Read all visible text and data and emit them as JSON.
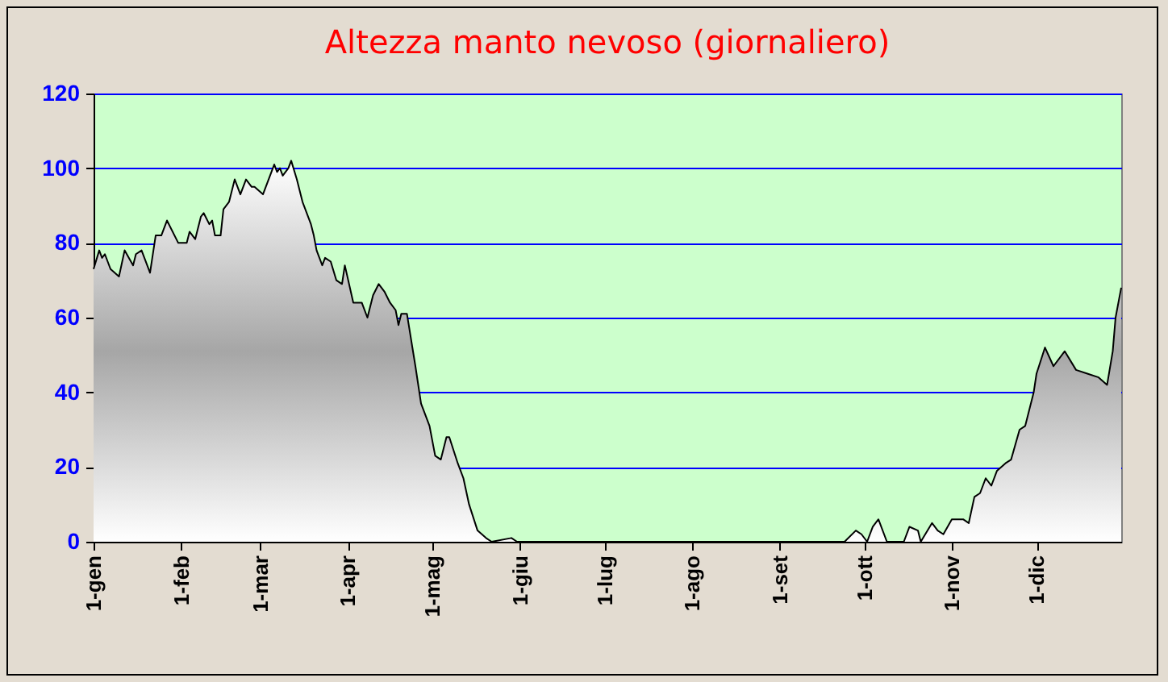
{
  "chart_data": {
    "type": "area",
    "title": "Altezza manto nevoso (giornaliero)",
    "x": [
      "--01-01",
      "--01-03",
      "--01-04",
      "--01-05",
      "--01-07",
      "--01-10",
      "--01-12",
      "--01-15",
      "--01-16",
      "--01-18",
      "--01-21",
      "--01-23",
      "--01-25",
      "--01-27",
      "--01-31",
      "--02-03",
      "--02-04",
      "--02-06",
      "--02-08",
      "--02-09",
      "--02-11",
      "--02-12",
      "--02-13",
      "--02-15",
      "--02-16",
      "--02-18",
      "--02-20",
      "--02-22",
      "--02-24",
      "--02-26",
      "--02-27",
      "--03-02",
      "--03-05",
      "--03-06",
      "--03-07",
      "--03-08",
      "--03-09",
      "--03-11",
      "--03-12",
      "--03-14",
      "--03-16",
      "--03-19",
      "--03-20",
      "--03-21",
      "--03-23",
      "--03-24",
      "--03-26",
      "--03-28",
      "--03-30",
      "--03-31",
      "--04-03",
      "--04-06",
      "--04-08",
      "--04-10",
      "--04-12",
      "--04-14",
      "--04-16",
      "--04-18",
      "--04-19",
      "--04-20",
      "--04-22",
      "--04-25",
      "--04-27",
      "--04-30",
      "--05-02",
      "--05-04",
      "--05-06",
      "--05-07",
      "--05-10",
      "--05-12",
      "--05-14",
      "--05-17",
      "--05-20",
      "--05-22",
      "--05-29",
      "--05-31",
      "--06-15",
      "--08-01",
      "--09-01",
      "--09-16",
      "--09-24",
      "--09-28",
      "--09-30",
      "--10-02",
      "--10-04",
      "--10-06",
      "--10-09",
      "--10-15",
      "--10-17",
      "--10-20",
      "--10-21",
      "--10-25",
      "--10-27",
      "--10-29",
      "--11-01",
      "--11-05",
      "--11-07",
      "--11-09",
      "--11-11",
      "--11-13",
      "--11-15",
      "--11-17",
      "--11-20",
      "--11-22",
      "--11-25",
      "--11-27",
      "--11-30",
      "--12-01",
      "--12-04",
      "--12-07",
      "--12-11",
      "--12-15",
      "--12-19",
      "--12-23",
      "--12-26",
      "--12-28",
      "--12-29",
      "--12-31"
    ],
    "series": [
      {
        "color": "#a6a6a6",
        "values": [
          73,
          78,
          76,
          77,
          73,
          71,
          78,
          74,
          77,
          78,
          72,
          82,
          82,
          86,
          80,
          80,
          83,
          81,
          87,
          88,
          85,
          86,
          82,
          82,
          89,
          91,
          97,
          93,
          97,
          95,
          95,
          93,
          99,
          101,
          99,
          100,
          98,
          100,
          102,
          97,
          91,
          85,
          82,
          78,
          74,
          76,
          75,
          70,
          69,
          74,
          64,
          64,
          60,
          66,
          69,
          67,
          64,
          62,
          58,
          61,
          61,
          47,
          37,
          31,
          23,
          22,
          28,
          28,
          21,
          17,
          10,
          3,
          1,
          0,
          1,
          0,
          0,
          0,
          0,
          0,
          0,
          3,
          2,
          0,
          4,
          6,
          0,
          0,
          4,
          3,
          0,
          5,
          3,
          2,
          6,
          6,
          5,
          12,
          13,
          17,
          15,
          19,
          21,
          22,
          30,
          31,
          40,
          45,
          52,
          47,
          51,
          46,
          45,
          44,
          42,
          51,
          60,
          68
        ]
      }
    ],
    "xlim": [
      "--01-01",
      "--12-31"
    ],
    "xticks": [
      {
        "value": "--01-01",
        "label": "1-gen"
      },
      {
        "value": "--02-01",
        "label": "1-feb"
      },
      {
        "value": "--03-01",
        "label": "1-mar"
      },
      {
        "value": "--04-01",
        "label": "1-apr"
      },
      {
        "value": "--05-01",
        "label": "1-mag"
      },
      {
        "value": "--06-01",
        "label": "1-giu"
      },
      {
        "value": "--07-01",
        "label": "1-lug"
      },
      {
        "value": "--08-01",
        "label": "1-ago"
      },
      {
        "value": "--09-01",
        "label": "1-set"
      },
      {
        "value": "--10-01",
        "label": "1-ott"
      },
      {
        "value": "--11-01",
        "label": "1-nov"
      },
      {
        "value": "--12-01",
        "label": "1-dic"
      }
    ],
    "ylim": [
      0,
      120
    ],
    "yticks": [
      0,
      20,
      40,
      60,
      80,
      100,
      120
    ],
    "grid": "y"
  }
}
